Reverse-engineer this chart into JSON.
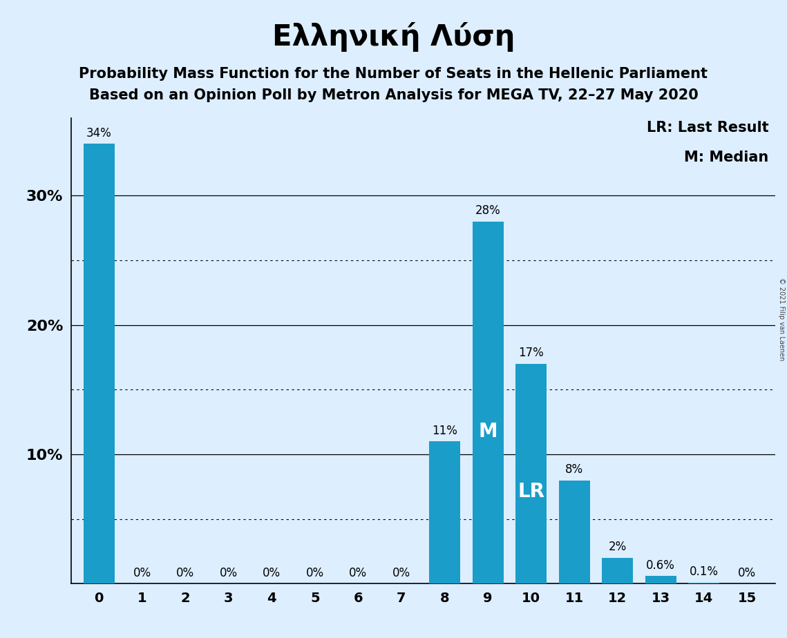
{
  "title": "Ελληνική Λύση",
  "subtitle1": "Probability Mass Function for the Number of Seats in the Hellenic Parliament",
  "subtitle2": "Based on an Opinion Poll by Metron Analysis for MEGA TV, 22–27 May 2020",
  "copyright": "© 2021 Filip van Laenen",
  "legend_line1": "LR: Last Result",
  "legend_line2": "M: Median",
  "categories": [
    0,
    1,
    2,
    3,
    4,
    5,
    6,
    7,
    8,
    9,
    10,
    11,
    12,
    13,
    14,
    15
  ],
  "values": [
    34,
    0,
    0,
    0,
    0,
    0,
    0,
    0,
    11,
    28,
    17,
    8,
    2,
    0.6,
    0.1,
    0
  ],
  "bar_labels": [
    "34%",
    "0%",
    "0%",
    "0%",
    "0%",
    "0%",
    "0%",
    "0%",
    "11%",
    "28%",
    "17%",
    "8%",
    "2%",
    "0.6%",
    "0.1%",
    "0%"
  ],
  "bar_color": "#1a9dc8",
  "background_color": "#ddeeff",
  "median_bar": 9,
  "last_result_bar": 10,
  "median_label": "M",
  "last_result_label": "LR",
  "ylim": [
    0,
    36
  ],
  "title_fontsize": 30,
  "subtitle_fontsize": 15,
  "bar_label_fontsize": 12,
  "tick_fontsize": 14,
  "legend_fontsize": 15,
  "solid_grid": [
    10,
    20,
    30
  ],
  "dotted_grid": [
    5,
    15,
    25
  ],
  "ytick_labels_pos": [
    10,
    20,
    30
  ],
  "ytick_labels_text": [
    "10%",
    "20%",
    "30%"
  ]
}
